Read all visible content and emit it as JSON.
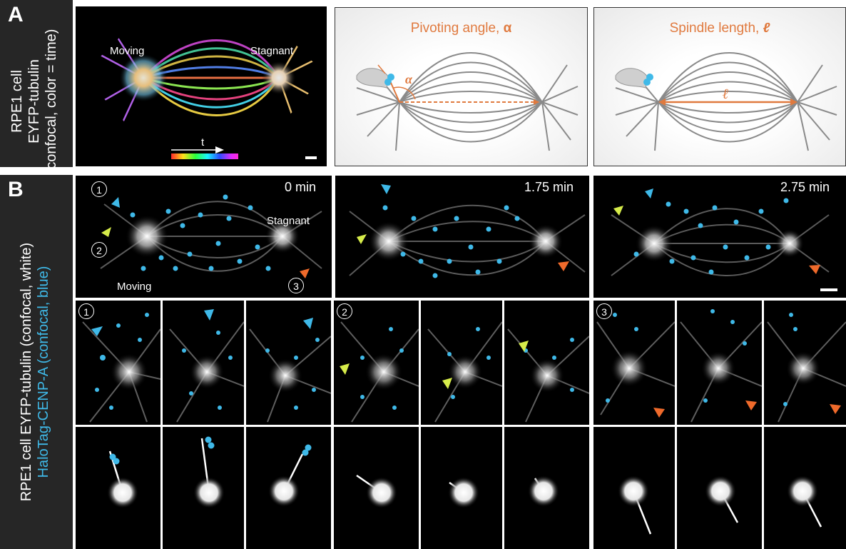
{
  "panel_a": {
    "letter": "A",
    "side_label": [
      "RPE1 cell",
      "EYFP-tubulin",
      "(confocal, color = time)"
    ],
    "micrograph": {
      "label_left": "Moving",
      "label_right": "Stagnant",
      "time_arrow_label": "t"
    },
    "schematic_angle": {
      "title_text": "Pivoting angle, ",
      "title_symbol": "α",
      "angle_label": "α"
    },
    "schematic_length": {
      "title_text": "Spindle length, ",
      "title_symbol": "ℓ",
      "length_label": "ℓ"
    }
  },
  "panel_b": {
    "letter": "B",
    "side_label_white": "RPE1 cell EYFP-tubulin (confocal, white)",
    "side_label_blue": "HaloTag-CENP-A (confocal, blue)",
    "timepoints": [
      "0 min",
      "1.75 min",
      "2.75 min"
    ],
    "first_frame": {
      "label_stagnant": "Stagnant",
      "label_moving": "Moving",
      "markers": [
        "1",
        "2",
        "3"
      ]
    },
    "zoom_markers": [
      "1",
      "2",
      "3"
    ]
  },
  "colors": {
    "cyan": "#3fb9e8",
    "yellow": "#d6ec4a",
    "orange": "#ef6a2b",
    "schematic_orange": "#e07a3f",
    "sidebar": "#262626"
  }
}
